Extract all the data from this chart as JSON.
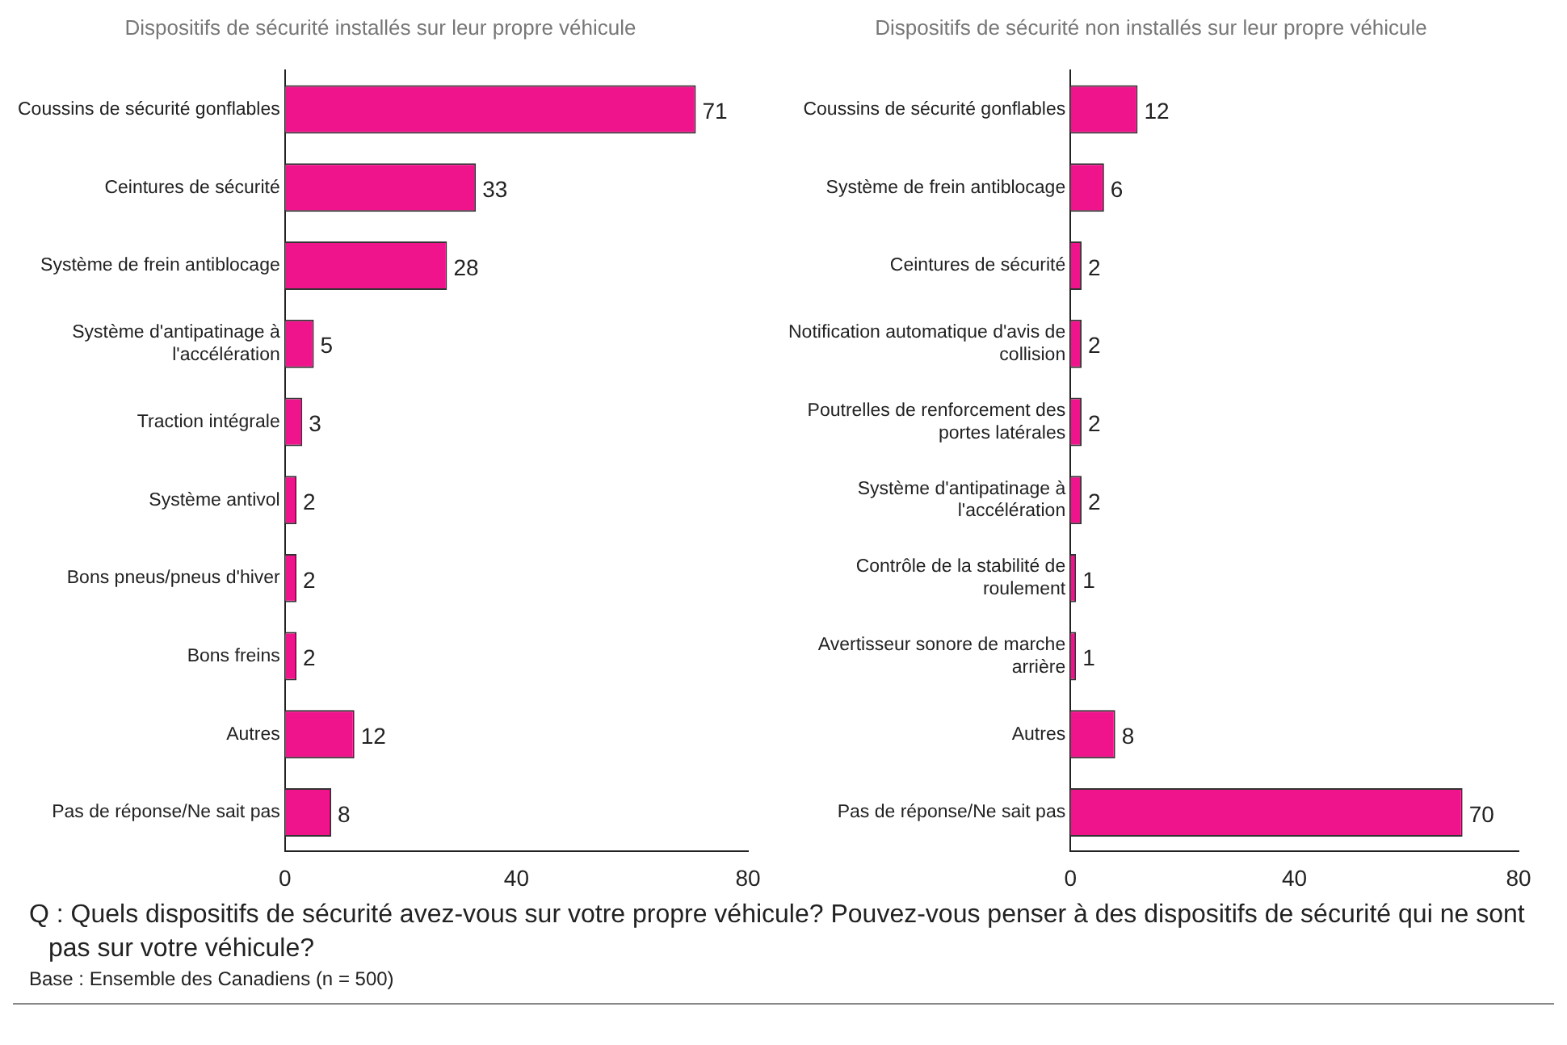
{
  "chart_data": [
    {
      "type": "bar",
      "orientation": "horizontal",
      "title": "Dispositifs de sécurité installés sur leur propre véhicule",
      "categories": [
        "Coussins de sécurité gonflables",
        "Ceintures de sécurité",
        "Système de frein antiblocage",
        "Système d'antipatinage à l'accélération",
        "Traction intégrale",
        "Système antivol",
        "Bons pneus/pneus d'hiver",
        "Bons freins",
        "Autres",
        "Pas de réponse/Ne sait pas"
      ],
      "values": [
        71,
        33,
        28,
        5,
        3,
        2,
        2,
        2,
        12,
        8
      ],
      "color": "#f0148c",
      "xlim": [
        0,
        80
      ],
      "xticks": [
        0,
        40,
        80
      ],
      "grid": false,
      "legend": false,
      "data_labels": true,
      "annotations": [
        "Q : Quels dispositifs de sécurité avez-vous sur votre propre véhicule? Pouvez-vous penser à des dispositifs de sécurité qui ne sont pas sur votre véhicule?",
        "Base : Ensemble des Canadiens (n = 500)"
      ]
    },
    {
      "type": "bar",
      "orientation": "horizontal",
      "title": "Dispositifs de sécurité non installés sur leur propre véhicule",
      "categories": [
        "Coussins de sécurité gonflables",
        "Système de frein antiblocage",
        "Ceintures de sécurité",
        "Notification automatique d'avis de collision",
        "Poutrelles de renforcement des portes latérales",
        "Système d'antipatinage à l'accélération",
        "Contrôle de la stabilité de roulement",
        "Avertisseur sonore de marche arrière",
        "Autres",
        "Pas de réponse/Ne sait pas"
      ],
      "values": [
        12,
        6,
        2,
        2,
        2,
        2,
        1,
        1,
        8,
        70
      ],
      "color": "#f0148c",
      "xlim": [
        0,
        80
      ],
      "xticks": [
        0,
        40,
        80
      ],
      "grid": false,
      "legend": false,
      "data_labels": true
    }
  ]
}
